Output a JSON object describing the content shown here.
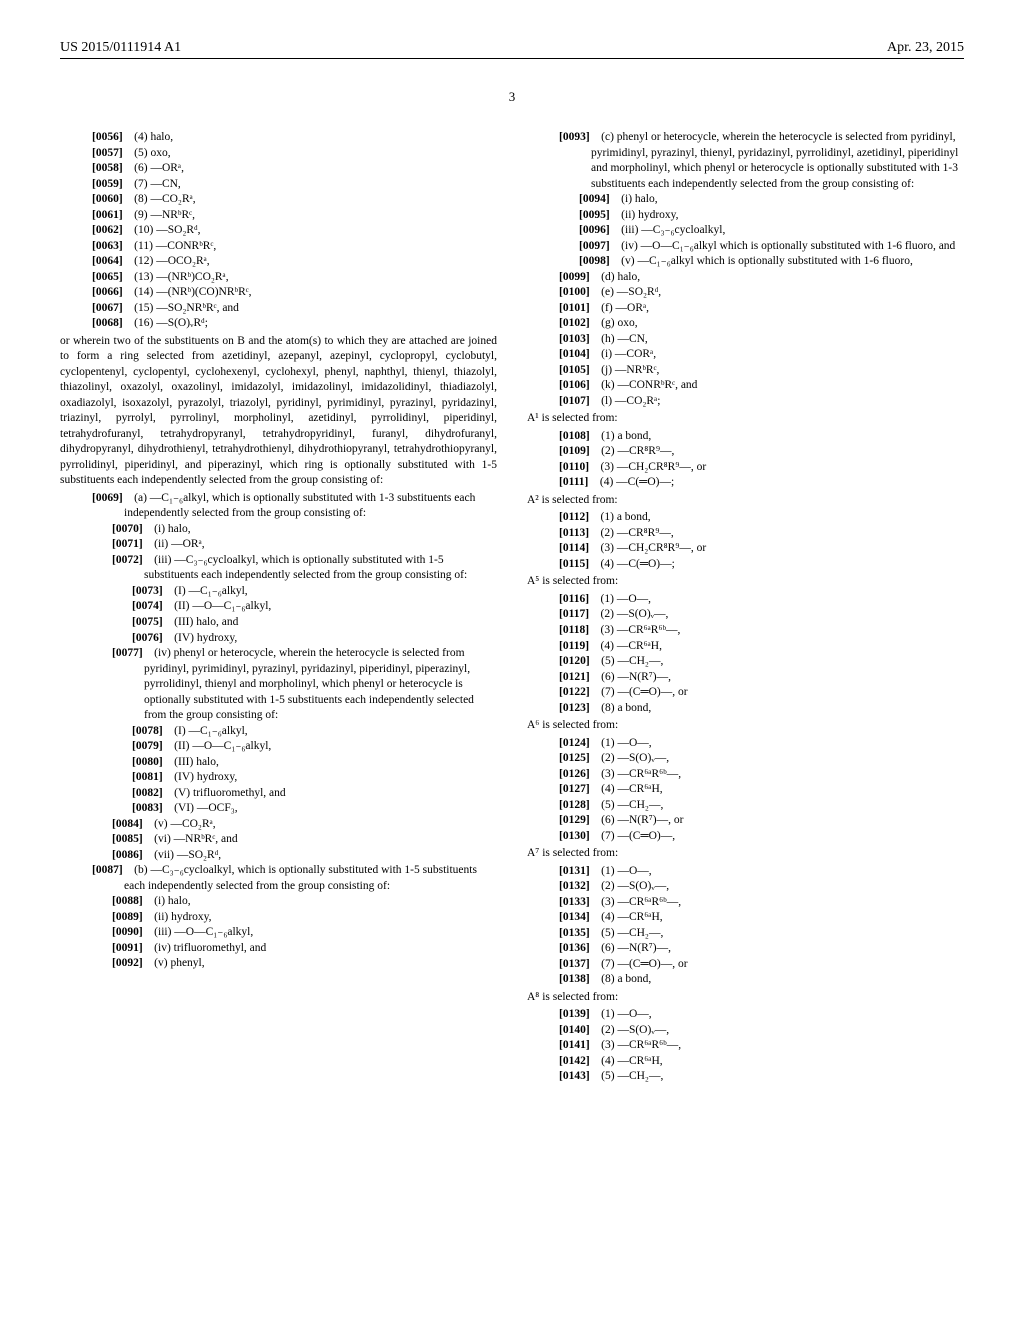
{
  "header": {
    "pub_number": "US 2015/0111914 A1",
    "date": "Apr. 23, 2015"
  },
  "page_number": "3",
  "left_col": {
    "entries_top": [
      {
        "num": "[0056]",
        "text": "(4) halo,"
      },
      {
        "num": "[0057]",
        "text": "(5) oxo,"
      },
      {
        "num": "[0058]",
        "text": "(6) —ORᵃ,"
      },
      {
        "num": "[0059]",
        "text": "(7) —CN,"
      },
      {
        "num": "[0060]",
        "text": "(8) —CO₂Rᵃ,"
      },
      {
        "num": "[0061]",
        "text": "(9) —NRᵇRᶜ,"
      },
      {
        "num": "[0062]",
        "text": "(10) —SO₂Rᵈ,"
      },
      {
        "num": "[0063]",
        "text": "(11) —CONRᵇRᶜ,"
      },
      {
        "num": "[0064]",
        "text": "(12) —OCO₂Rᵃ,"
      },
      {
        "num": "[0065]",
        "text": "(13) —(NRᵇ)CO₂Rᵃ,"
      },
      {
        "num": "[0066]",
        "text": "(14) —(NRᵇ)(CO)NRᵇRᶜ,"
      },
      {
        "num": "[0067]",
        "text": "(15) —SO₂NRᵇRᶜ, and"
      },
      {
        "num": "[0068]",
        "text": "(16) —S(O)ᵥRᵈ;"
      }
    ],
    "body_text": "or wherein two of the substituents on B and the atom(s) to which they are attached are joined to form a ring selected from azetidinyl, azepanyl, azepinyl, cyclopropyl, cyclobutyl, cyclopentenyl, cyclopentyl, cyclohexenyl, cyclohexyl, phenyl, naphthyl, thienyl, thiazolyl, thiazolinyl, oxazolyl, oxazolinyl, imidazolyl, imidazolinyl, imidazolidinyl, thiadiazolyl, oxadiazolyl, isoxazolyl, pyrazolyl, triazolyl, pyridinyl, pyrimidinyl, pyrazinyl, pyridazinyl, triazinyl, pyrrolyl, pyrrolinyl, morpholinyl, azetidinyl, pyrrolidinyl, piperidinyl, tetrahydrofuranyl, tetrahydropyranyl, tetrahydropyridinyl, furanyl, dihydrofuranyl, dihydropyranyl, dihydrothienyl, tetrahydrothienyl, dihydrothiopyranyl, tetrahydrothiopyranyl, pyrrolidinyl, piperidinyl, and piperazinyl, which ring is optionally substituted with 1-5 substituents each independently selected from the group consisting of:",
    "entry_0069": {
      "num": "[0069]",
      "text": "(a) —C₁₋₆alkyl, which is optionally substituted with 1-3 substituents each independently selected from the group consisting of:"
    },
    "entries_sub1": [
      {
        "num": "[0070]",
        "text": "(i) halo,"
      },
      {
        "num": "[0071]",
        "text": "(ii) —ORᵃ,"
      }
    ],
    "entry_0072": {
      "num": "[0072]",
      "text": "(iii) —C₃₋₆cycloalkyl, which is optionally substituted with 1-5 substituents each independently selected from the group consisting of:"
    },
    "entries_sub2": [
      {
        "num": "[0073]",
        "text": "(I) —C₁₋₆alkyl,"
      },
      {
        "num": "[0074]",
        "text": "(II) —O—C₁₋₆alkyl,"
      },
      {
        "num": "[0075]",
        "text": "(III) halo, and"
      },
      {
        "num": "[0076]",
        "text": "(IV) hydroxy,"
      }
    ],
    "entry_0077": {
      "num": "[0077]",
      "text": "(iv) phenyl or heterocycle, wherein the heterocycle is selected from pyridinyl, pyrimidinyl, pyrazinyl, pyridazinyl, piperidinyl, piperazinyl, pyrrolidinyl, thienyl and morpholinyl, which phenyl or heterocycle is optionally substituted with 1-5 substituents each independently selected from the group consisting of:"
    },
    "entries_sub3": [
      {
        "num": "[0078]",
        "text": "(I) —C₁₋₆alkyl,"
      },
      {
        "num": "[0079]",
        "text": "(II) —O—C₁₋₆alkyl,"
      },
      {
        "num": "[0080]",
        "text": "(III) halo,"
      },
      {
        "num": "[0081]",
        "text": "(IV) hydroxy,"
      },
      {
        "num": "[0082]",
        "text": "(V) trifluoromethyl, and"
      },
      {
        "num": "[0083]",
        "text": "(VI) —OCF₃,"
      }
    ],
    "entries_sub4": [
      {
        "num": "[0084]",
        "text": "(v) —CO₂Rᵃ,"
      },
      {
        "num": "[0085]",
        "text": "(vi) —NRᵇRᶜ, and"
      },
      {
        "num": "[0086]",
        "text": "(vii) —SO₂Rᵈ,"
      }
    ],
    "entry_0087": {
      "num": "[0087]",
      "text": "(b) —C₃₋₆cycloalkyl, which is optionally substituted with 1-5 substituents each independently selected from the group consisting of:"
    },
    "entries_sub5": [
      {
        "num": "[0088]",
        "text": "(i) halo,"
      },
      {
        "num": "[0089]",
        "text": "(ii) hydroxy,"
      },
      {
        "num": "[0090]",
        "text": "(iii) —O—C₁₋₆alkyl,"
      },
      {
        "num": "[0091]",
        "text": "(iv) trifluoromethyl, and"
      },
      {
        "num": "[0092]",
        "text": "(v) phenyl,"
      }
    ]
  },
  "right_col": {
    "entry_0093": {
      "num": "[0093]",
      "text": "(c) phenyl or heterocycle, wherein the heterocycle is selected from pyridinyl, pyrimidinyl, pyrazinyl, thienyl, pyridazinyl, pyrrolidinyl, azetidinyl, piperidinyl and morpholinyl, which phenyl or heterocycle is optionally substituted with 1-3 substituents each independently selected from the group consisting of:"
    },
    "entries_sub1": [
      {
        "num": "[0094]",
        "text": "(i) halo,"
      },
      {
        "num": "[0095]",
        "text": "(ii) hydroxy,"
      },
      {
        "num": "[0096]",
        "text": "(iii) —C₃₋₆cycloalkyl,"
      },
      {
        "num": "[0097]",
        "text": "(iv) —O—C₁₋₆alkyl which is optionally substituted with 1-6 fluoro, and"
      },
      {
        "num": "[0098]",
        "text": "(v) —C₁₋₆alkyl which is optionally substituted with 1-6 fluoro,"
      }
    ],
    "entries_sub2": [
      {
        "num": "[0099]",
        "text": "(d) halo,"
      },
      {
        "num": "[0100]",
        "text": "(e) —SO₂Rᵈ,"
      },
      {
        "num": "[0101]",
        "text": "(f) —ORᵃ,"
      },
      {
        "num": "[0102]",
        "text": "(g) oxo,"
      },
      {
        "num": "[0103]",
        "text": "(h) —CN,"
      },
      {
        "num": "[0104]",
        "text": "(i) —CORᵃ,"
      },
      {
        "num": "[0105]",
        "text": "(j) —NRᵇRᶜ,"
      },
      {
        "num": "[0106]",
        "text": "(k) —CONRᵇRᶜ, and"
      },
      {
        "num": "[0107]",
        "text": "(l) —CO₂Rᵃ;"
      }
    ],
    "a1_label": "A¹ is selected from:",
    "a1_entries": [
      {
        "num": "[0108]",
        "text": "(1) a bond,"
      },
      {
        "num": "[0109]",
        "text": "(2) —CR⁸R⁹—,"
      },
      {
        "num": "[0110]",
        "text": "(3) —CH₂CR⁸R⁹—, or"
      },
      {
        "num": "[0111]",
        "text": "(4) —C(═O)—;"
      }
    ],
    "a2_label": "A² is selected from:",
    "a2_entries": [
      {
        "num": "[0112]",
        "text": "(1) a bond,"
      },
      {
        "num": "[0113]",
        "text": "(2) —CR⁸R⁹—,"
      },
      {
        "num": "[0114]",
        "text": "(3) —CH₂CR⁸R⁹—, or"
      },
      {
        "num": "[0115]",
        "text": "(4) —C(═O)—;"
      }
    ],
    "a5_label": "A⁵ is selected from:",
    "a5_entries": [
      {
        "num": "[0116]",
        "text": "(1) —O—,"
      },
      {
        "num": "[0117]",
        "text": "(2) —S(O)ᵥ—,"
      },
      {
        "num": "[0118]",
        "text": "(3) —CR⁶ᵃR⁶ᵇ—,"
      },
      {
        "num": "[0119]",
        "text": "(4) —CR⁶ᵃH,"
      },
      {
        "num": "[0120]",
        "text": "(5) —CH₂—,"
      },
      {
        "num": "[0121]",
        "text": "(6) —N(R⁷)—,"
      },
      {
        "num": "[0122]",
        "text": "(7) —(C═O)—, or"
      },
      {
        "num": "[0123]",
        "text": "(8) a bond,"
      }
    ],
    "a6_label": "A⁶ is selected from:",
    "a6_entries": [
      {
        "num": "[0124]",
        "text": "(1) —O—,"
      },
      {
        "num": "[0125]",
        "text": "(2) —S(O)ᵥ—,"
      },
      {
        "num": "[0126]",
        "text": "(3) —CR⁶ᵃR⁶ᵇ—,"
      },
      {
        "num": "[0127]",
        "text": "(4) —CR⁶ᵃH,"
      },
      {
        "num": "[0128]",
        "text": "(5) —CH₂—,"
      },
      {
        "num": "[0129]",
        "text": "(6) —N(R⁷)—, or"
      },
      {
        "num": "[0130]",
        "text": "(7) —(C═O)—,"
      }
    ],
    "a7_label": "A⁷ is selected from:",
    "a7_entries": [
      {
        "num": "[0131]",
        "text": "(1) —O—,"
      },
      {
        "num": "[0132]",
        "text": "(2) —S(O)ᵥ—,"
      },
      {
        "num": "[0133]",
        "text": "(3) —CR⁶ᵃR⁶ᵇ—,"
      },
      {
        "num": "[0134]",
        "text": "(4) —CR⁶ᵃH,"
      },
      {
        "num": "[0135]",
        "text": "(5) —CH₂—,"
      },
      {
        "num": "[0136]",
        "text": "(6) —N(R⁷)—,"
      },
      {
        "num": "[0137]",
        "text": "(7) —(C═O)—, or"
      },
      {
        "num": "[0138]",
        "text": "(8) a bond,"
      }
    ],
    "a8_label": "A⁸ is selected from:",
    "a8_entries": [
      {
        "num": "[0139]",
        "text": "(1) —O—,"
      },
      {
        "num": "[0140]",
        "text": "(2) —S(O)ᵥ—,"
      },
      {
        "num": "[0141]",
        "text": "(3) —CR⁶ᵃR⁶ᵇ—,"
      },
      {
        "num": "[0142]",
        "text": "(4) —CR⁶ᵃH,"
      },
      {
        "num": "[0143]",
        "text": "(5) —CH₂—,"
      }
    ]
  }
}
